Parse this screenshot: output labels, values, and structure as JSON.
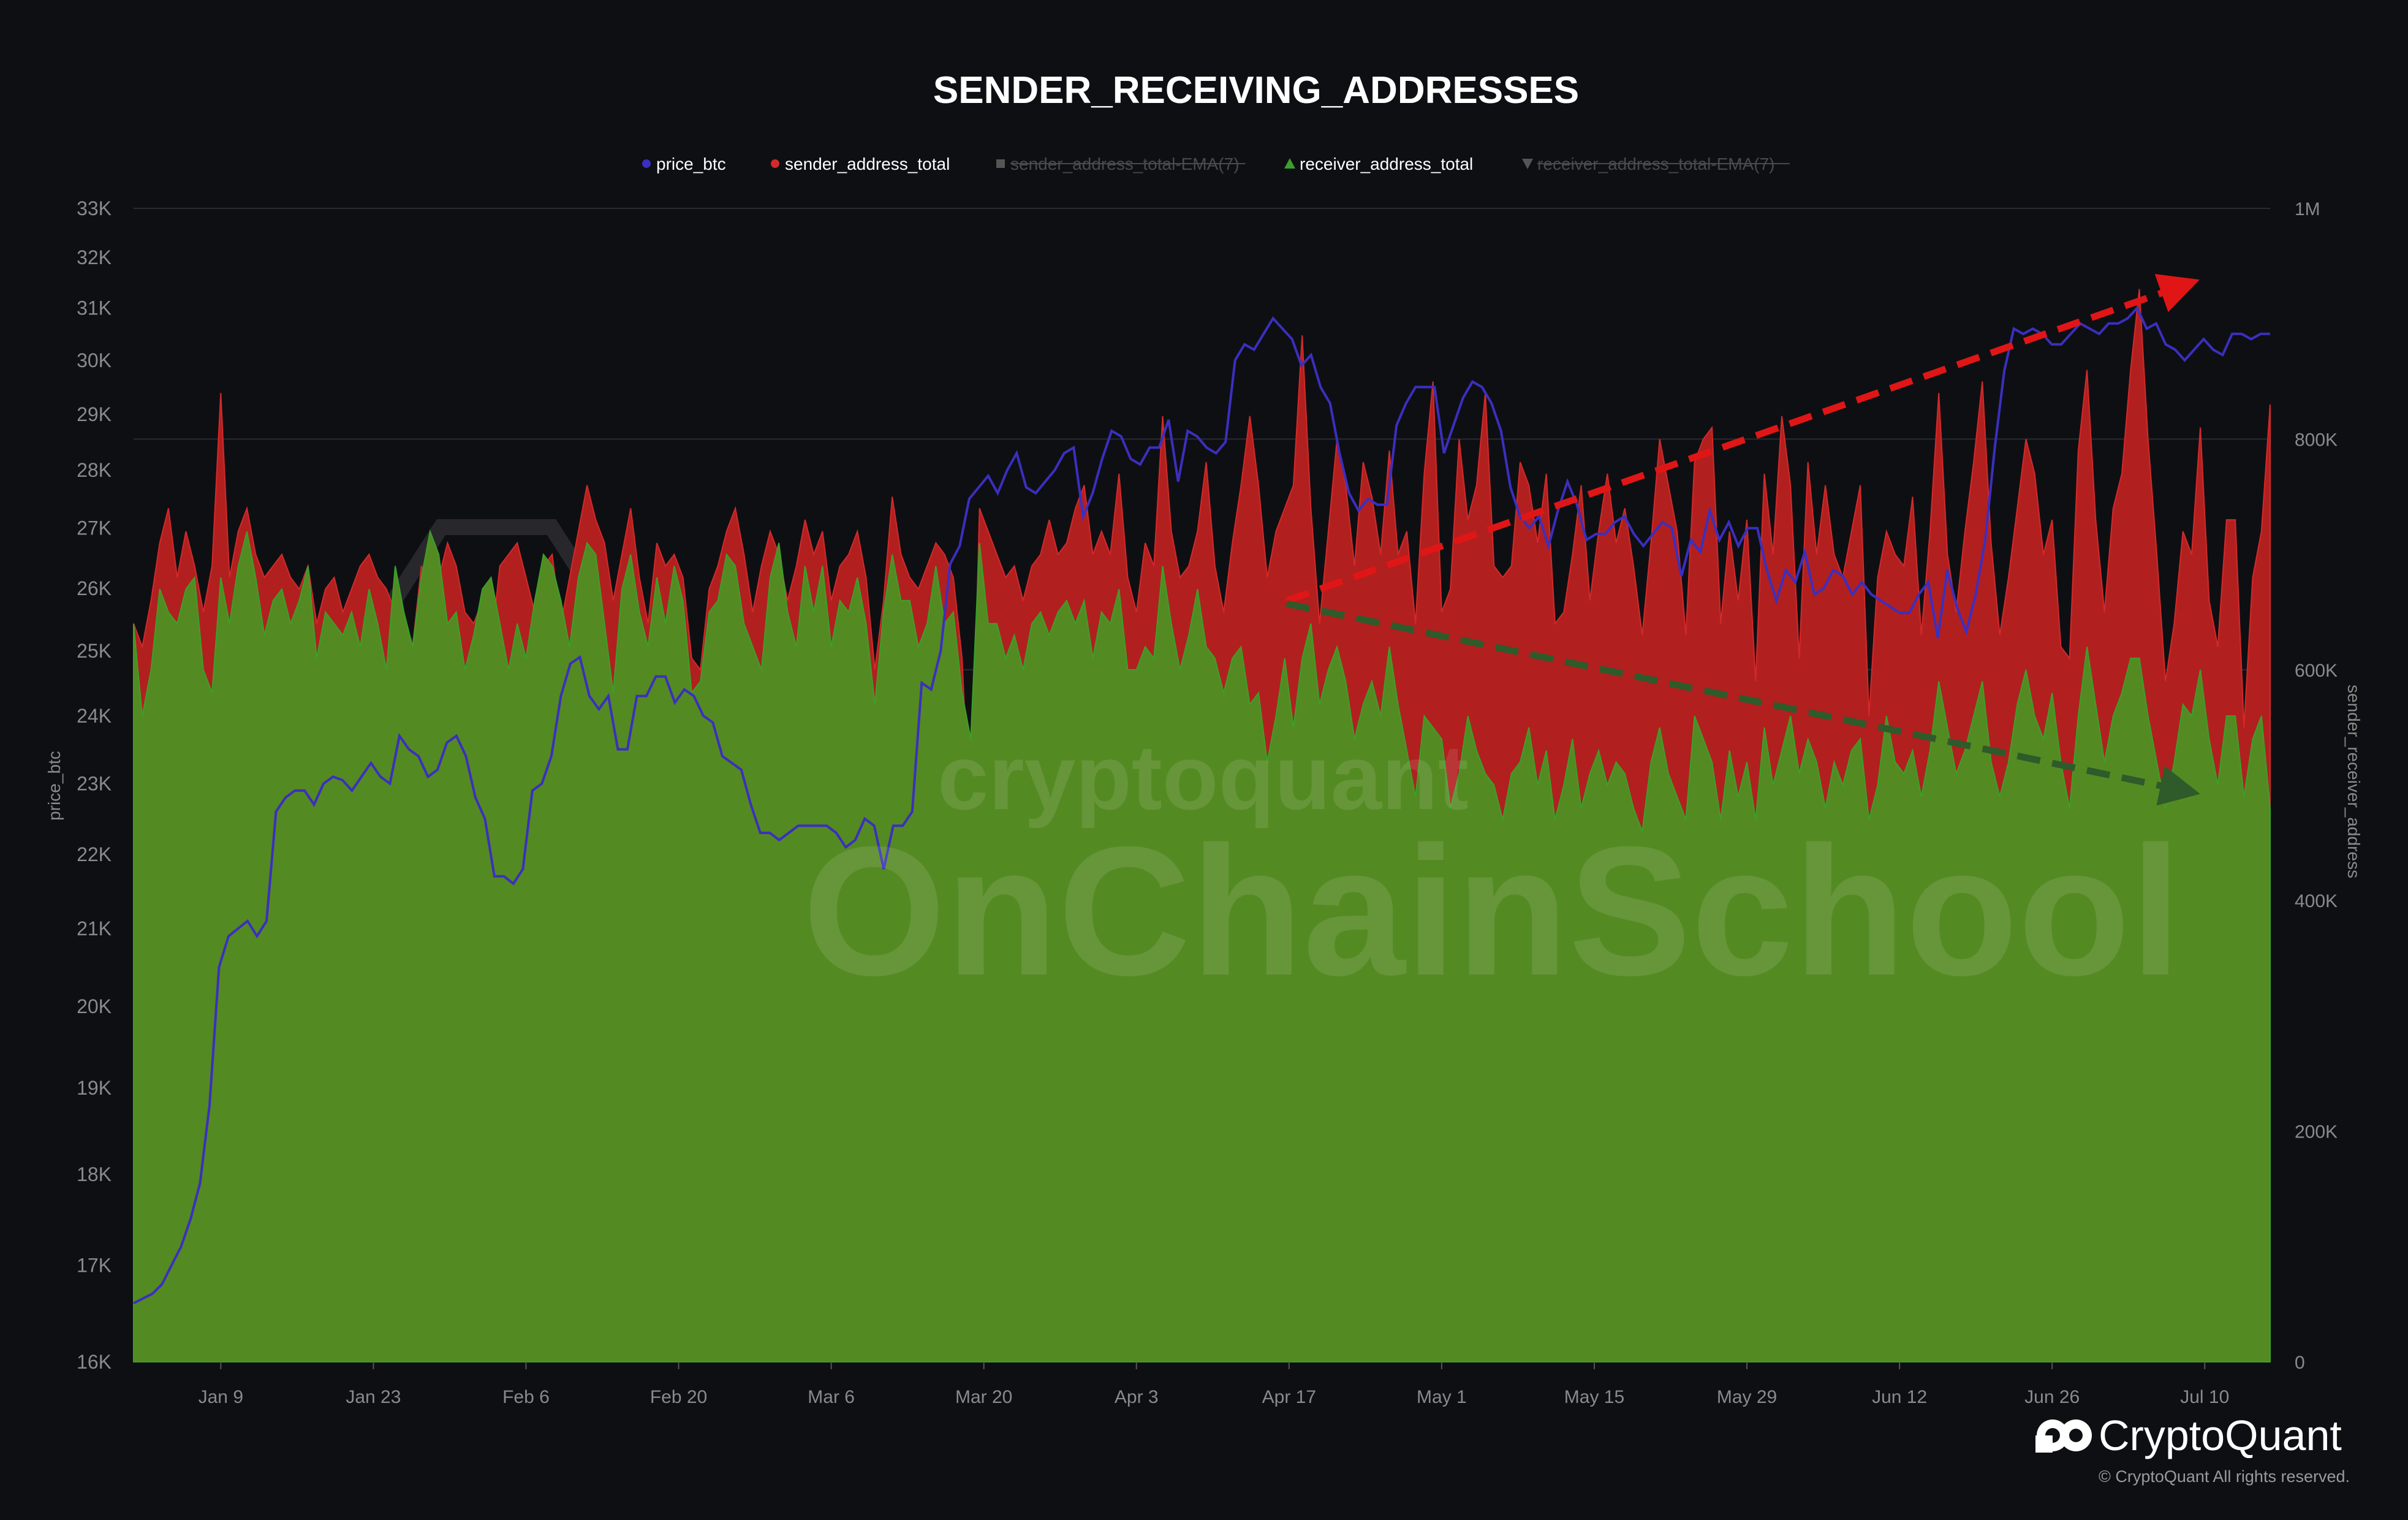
{
  "chart_data": {
    "type": "area",
    "title": "SENDER_RECEIVING_ADDRESSES",
    "y_left_label": "price_btc",
    "y_right_label": "sender_receiver_address",
    "y_left_ticks": [
      "16K",
      "17K",
      "18K",
      "19K",
      "20K",
      "21K",
      "22K",
      "23K",
      "24K",
      "25K",
      "26K",
      "27K",
      "28K",
      "29K",
      "30K",
      "31K",
      "32K",
      "33K"
    ],
    "y_left_scale": "log",
    "y_left_range": [
      16000,
      33000
    ],
    "y_right_ticks": [
      "0",
      "200K",
      "400K",
      "600K",
      "800K",
      "1M"
    ],
    "y_right_range": [
      0,
      1000000
    ],
    "x_ticks": [
      "Jan 9",
      "Jan 23",
      "Feb 6",
      "Feb 20",
      "Mar 6",
      "Mar 20",
      "Apr 3",
      "Apr 17",
      "May 1",
      "May 15",
      "May 29",
      "Jun 12",
      "Jun 26",
      "Jul 10"
    ],
    "x_range_days": "Jan 1 – Jul 16",
    "legend": [
      {
        "name": "price_btc",
        "color": "#3b2fbf",
        "marker": "circle",
        "hidden": false
      },
      {
        "name": "sender_address_total",
        "color": "#d12a2a",
        "marker": "circle",
        "hidden": false
      },
      {
        "name": "sender_address_total-EMA(7)",
        "color": "#555555",
        "marker": "square",
        "hidden": true
      },
      {
        "name": "receiver_address_total",
        "color": "#3ba02a",
        "marker": "triangle-up",
        "hidden": false
      },
      {
        "name": "receiver_address_total-EMA(7)",
        "color": "#555555",
        "marker": "triangle-down",
        "hidden": true
      }
    ],
    "price_btc": [
      16600,
      16650,
      16700,
      16800,
      17000,
      17200,
      17500,
      17900,
      18800,
      20500,
      20900,
      21000,
      21100,
      20900,
      21100,
      22600,
      22800,
      22900,
      22900,
      22700,
      23000,
      23100,
      23050,
      22900,
      23100,
      23300,
      23100,
      23000,
      23700,
      23500,
      23400,
      23100,
      23200,
      23600,
      23700,
      23400,
      22800,
      22500,
      21700,
      21700,
      21600,
      21800,
      22900,
      23000,
      23400,
      24300,
      24800,
      24900,
      24300,
      24100,
      24300,
      23500,
      23500,
      24300,
      24300,
      24600,
      24600,
      24200,
      24400,
      24300,
      24000,
      23900,
      23400,
      23300,
      23200,
      22700,
      22300,
      22300,
      22200,
      22300,
      22400,
      22400,
      22400,
      22400,
      22300,
      22100,
      22200,
      22500,
      22400,
      21800,
      22400,
      22400,
      22600,
      24500,
      24400,
      25000,
      26400,
      26700,
      27500,
      27700,
      27900,
      27600,
      28000,
      28300,
      27700,
      27600,
      27800,
      28000,
      28300,
      28400,
      27200,
      27600,
      28200,
      28700,
      28600,
      28200,
      28100,
      28400,
      28400,
      28900,
      27800,
      28700,
      28600,
      28400,
      28300,
      28500,
      30000,
      30300,
      30200,
      30500,
      30800,
      30600,
      30400,
      29900,
      30100,
      29500,
      29200,
      28300,
      27600,
      27300,
      27500,
      27400,
      27400,
      28800,
      29200,
      29500,
      29500,
      29500,
      28300,
      28800,
      29300,
      29600,
      29500,
      29200,
      28700,
      27700,
      27200,
      27000,
      27200,
      26700,
      27300,
      27800,
      27400,
      26800,
      26900,
      26900,
      27100,
      27200,
      26900,
      26700,
      26900,
      27100,
      27000,
      26200,
      26800,
      26600,
      27300,
      26800,
      27100,
      26700,
      27000,
      27000,
      26300,
      25800,
      26300,
      26100,
      26600,
      25900,
      26000,
      26300,
      26200,
      25900,
      26100,
      25900,
      25800,
      25700,
      25600,
      25600,
      25900,
      26100,
      25200,
      26300,
      25700,
      25300,
      25900,
      26800,
      28400,
      29800,
      30600,
      30500,
      30600,
      30500,
      30300,
      30300,
      30500,
      30700,
      30600,
      30500,
      30700,
      30700,
      30800,
      31000,
      30600,
      30700,
      30300,
      30200,
      30000,
      30200,
      30400,
      30200,
      30100,
      30500,
      30500,
      30400,
      30500,
      30500
    ],
    "sender_address_total": [
      640,
      620,
      660,
      710,
      740,
      680,
      720,
      690,
      650,
      690,
      840,
      680,
      720,
      740,
      700,
      680,
      690,
      700,
      680,
      670,
      690,
      640,
      670,
      680,
      650,
      670,
      690,
      700,
      680,
      670,
      650,
      640,
      620,
      690,
      670,
      680,
      710,
      690,
      650,
      640,
      660,
      620,
      690,
      700,
      710,
      680,
      650,
      690,
      700,
      640,
      680,
      720,
      760,
      730,
      710,
      660,
      700,
      740,
      680,
      640,
      710,
      690,
      700,
      680,
      610,
      600,
      670,
      690,
      720,
      740,
      700,
      650,
      690,
      720,
      700,
      660,
      690,
      730,
      700,
      720,
      660,
      690,
      700,
      720,
      680,
      600,
      660,
      750,
      700,
      680,
      670,
      690,
      710,
      700,
      680,
      610,
      450,
      740,
      720,
      700,
      680,
      690,
      660,
      690,
      700,
      730,
      700,
      710,
      740,
      760,
      700,
      720,
      700,
      770,
      680,
      650,
      710,
      690,
      820,
      720,
      680,
      690,
      720,
      780,
      690,
      650,
      710,
      760,
      820,
      760,
      680,
      720,
      740,
      760,
      890,
      740,
      640,
      720,
      800,
      760,
      690,
      780,
      750,
      700,
      790,
      700,
      720,
      640,
      770,
      850,
      650,
      670,
      800,
      730,
      760,
      840,
      690,
      680,
      690,
      780,
      760,
      710,
      770,
      640,
      650,
      700,
      760,
      660,
      720,
      770,
      710,
      740,
      690,
      630,
      710,
      800,
      760,
      720,
      630,
      780,
      800,
      810,
      640,
      720,
      660,
      730,
      590,
      770,
      700,
      820,
      760,
      610,
      780,
      700,
      760,
      700,
      680,
      720,
      760,
      560,
      680,
      720,
      700,
      690,
      750,
      630,
      720,
      840,
      700,
      650,
      720,
      780,
      850,
      710,
      630,
      680,
      740,
      800,
      770,
      700,
      730,
      620,
      610,
      790,
      860,
      730,
      650,
      740,
      770,
      860,
      930,
      800,
      700,
      590,
      640,
      720,
      700,
      810,
      660,
      620,
      730,
      730,
      550,
      680,
      720,
      830
    ],
    "receiver_address_total": [
      640,
      560,
      600,
      670,
      650,
      640,
      670,
      680,
      600,
      580,
      680,
      640,
      690,
      720,
      680,
      630,
      660,
      670,
      640,
      660,
      690,
      610,
      650,
      640,
      630,
      650,
      620,
      670,
      640,
      600,
      690,
      650,
      620,
      680,
      720,
      700,
      640,
      650,
      600,
      630,
      670,
      680,
      640,
      600,
      640,
      610,
      660,
      700,
      690,
      660,
      620,
      680,
      710,
      700,
      640,
      580,
      670,
      700,
      650,
      620,
      680,
      640,
      690,
      660,
      580,
      590,
      650,
      660,
      700,
      690,
      640,
      620,
      600,
      680,
      710,
      650,
      620,
      690,
      650,
      690,
      620,
      660,
      650,
      680,
      640,
      570,
      650,
      700,
      660,
      660,
      620,
      640,
      690,
      640,
      650,
      580,
      540,
      710,
      640,
      640,
      610,
      630,
      600,
      640,
      650,
      630,
      650,
      660,
      640,
      660,
      610,
      650,
      640,
      670,
      600,
      600,
      620,
      610,
      690,
      640,
      600,
      630,
      670,
      620,
      610,
      580,
      610,
      620,
      570,
      580,
      520,
      560,
      610,
      550,
      610,
      640,
      570,
      600,
      620,
      590,
      540,
      570,
      590,
      560,
      620,
      570,
      530,
      490,
      560,
      550,
      540,
      480,
      510,
      560,
      530,
      510,
      500,
      470,
      510,
      520,
      550,
      500,
      530,
      470,
      500,
      540,
      480,
      510,
      530,
      500,
      520,
      510,
      480,
      460,
      520,
      550,
      510,
      490,
      470,
      560,
      540,
      520,
      470,
      530,
      490,
      520,
      470,
      550,
      500,
      530,
      560,
      510,
      540,
      520,
      480,
      520,
      500,
      530,
      540,
      470,
      500,
      560,
      520,
      510,
      530,
      490,
      530,
      590,
      550,
      510,
      530,
      560,
      590,
      520,
      490,
      520,
      570,
      600,
      560,
      540,
      580,
      520,
      480,
      560,
      620,
      570,
      520,
      560,
      580,
      610,
      610,
      560,
      520,
      480,
      520,
      570,
      560,
      600,
      540,
      500,
      560,
      560,
      490,
      540,
      560,
      480
    ]
  }
}
